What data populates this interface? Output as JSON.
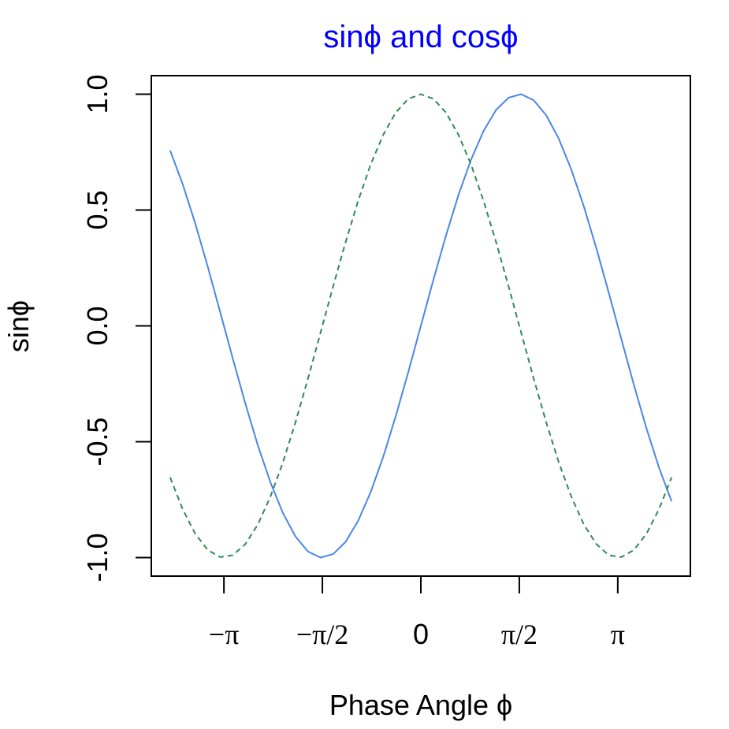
{
  "chart_data": {
    "type": "line",
    "title": "sinϕ  and  cosϕ",
    "title_color": "#0000FF",
    "xlabel": "Phase Angle ϕ",
    "ylabel": "sinϕ",
    "x_range": [
      -4,
      4
    ],
    "xlim": [
      -4.3,
      4.3
    ],
    "ylim": [
      -1.08,
      1.08
    ],
    "grid": false,
    "x_ticks": [
      {
        "value": -3.14159,
        "label": "−π"
      },
      {
        "value": -1.5708,
        "label": "−π/2"
      },
      {
        "value": 0,
        "label": "0"
      },
      {
        "value": 1.5708,
        "label": "π/2"
      },
      {
        "value": 3.14159,
        "label": "π"
      }
    ],
    "y_ticks": [
      {
        "value": -1.0,
        "label": "-1.0"
      },
      {
        "value": -0.5,
        "label": "-0.5"
      },
      {
        "value": 0.0,
        "label": "0.0"
      },
      {
        "value": 0.5,
        "label": "0.5"
      },
      {
        "value": 1.0,
        "label": "1.0"
      }
    ],
    "series": [
      {
        "function": "sin",
        "color": "#4A86E8",
        "dash": "solid",
        "x": [
          -4.0,
          -3.8,
          -3.6,
          -3.4,
          -3.2,
          -3.0,
          -2.8,
          -2.6,
          -2.4,
          -2.2,
          -2.0,
          -1.8,
          -1.6,
          -1.4,
          -1.2,
          -1.0,
          -0.8,
          -0.6,
          -0.4,
          -0.2,
          0.0,
          0.2,
          0.4,
          0.6,
          0.8,
          1.0,
          1.2,
          1.4,
          1.6,
          1.8,
          2.0,
          2.2,
          2.4,
          2.6,
          2.8,
          3.0,
          3.2,
          3.4,
          3.6,
          3.8,
          4.0
        ],
        "y": [
          0.757,
          0.612,
          0.443,
          0.256,
          0.058,
          -0.141,
          -0.335,
          -0.516,
          -0.675,
          -0.808,
          -0.909,
          -0.974,
          -1.0,
          -0.985,
          -0.932,
          -0.841,
          -0.717,
          -0.565,
          -0.389,
          -0.199,
          0.0,
          0.199,
          0.389,
          0.565,
          0.717,
          0.841,
          0.932,
          0.985,
          1.0,
          0.974,
          0.909,
          0.808,
          0.675,
          0.516,
          0.335,
          0.141,
          -0.058,
          -0.256,
          -0.443,
          -0.612,
          -0.757
        ]
      },
      {
        "function": "cos",
        "color": "#2E8B57",
        "dash": "dashed",
        "x": [
          -4.0,
          -3.8,
          -3.6,
          -3.4,
          -3.2,
          -3.0,
          -2.8,
          -2.6,
          -2.4,
          -2.2,
          -2.0,
          -1.8,
          -1.6,
          -1.4,
          -1.2,
          -1.0,
          -0.8,
          -0.6,
          -0.4,
          -0.2,
          0.0,
          0.2,
          0.4,
          0.6,
          0.8,
          1.0,
          1.2,
          1.4,
          1.6,
          1.8,
          2.0,
          2.2,
          2.4,
          2.6,
          2.8,
          3.0,
          3.2,
          3.4,
          3.6,
          3.8,
          4.0
        ],
        "y": [
          -0.654,
          -0.791,
          -0.897,
          -0.967,
          -0.998,
          -0.99,
          -0.942,
          -0.857,
          -0.737,
          -0.589,
          -0.416,
          -0.227,
          -0.029,
          0.17,
          0.362,
          0.54,
          0.697,
          0.825,
          0.921,
          0.98,
          1.0,
          0.98,
          0.921,
          0.825,
          0.697,
          0.54,
          0.362,
          0.17,
          -0.029,
          -0.227,
          -0.416,
          -0.589,
          -0.737,
          -0.857,
          -0.942,
          -0.99,
          -0.998,
          -0.967,
          -0.897,
          -0.791,
          -0.654
        ]
      }
    ]
  }
}
